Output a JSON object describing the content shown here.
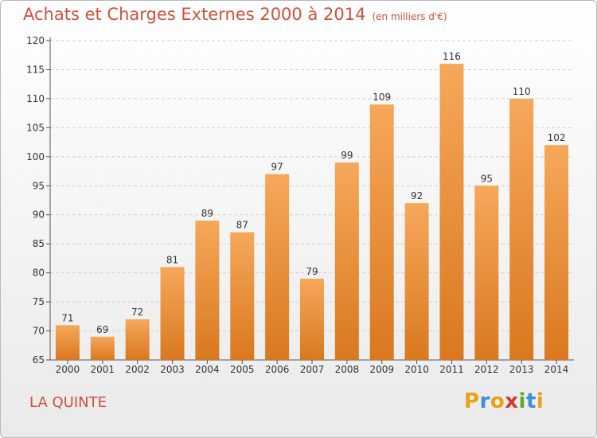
{
  "header": {
    "title": "Achats et Charges Externes 2000 à 2014",
    "unit_note": "(en milliers d'€)"
  },
  "footer": {
    "location": "LA QUINTE",
    "logo_text": "Proxiti"
  },
  "colors": {
    "bar_top": "#f6a85a",
    "bar_bottom": "#d9781f",
    "title": "#d2503c",
    "grid": "#d0d0d0"
  },
  "chart_data": {
    "type": "bar",
    "title": "Achats et Charges Externes 2000 à 2014",
    "xlabel": "",
    "ylabel": "",
    "categories": [
      "2000",
      "2001",
      "2002",
      "2003",
      "2004",
      "2005",
      "2006",
      "2007",
      "2008",
      "2009",
      "2010",
      "2011",
      "2012",
      "2013",
      "2014"
    ],
    "values": [
      71,
      69,
      72,
      81,
      89,
      87,
      97,
      79,
      99,
      109,
      92,
      116,
      95,
      110,
      102
    ],
    "ylim": [
      65,
      120
    ],
    "yticks": [
      65,
      70,
      75,
      80,
      85,
      90,
      95,
      100,
      105,
      110,
      115,
      120
    ],
    "grid": true,
    "legend": "none"
  }
}
